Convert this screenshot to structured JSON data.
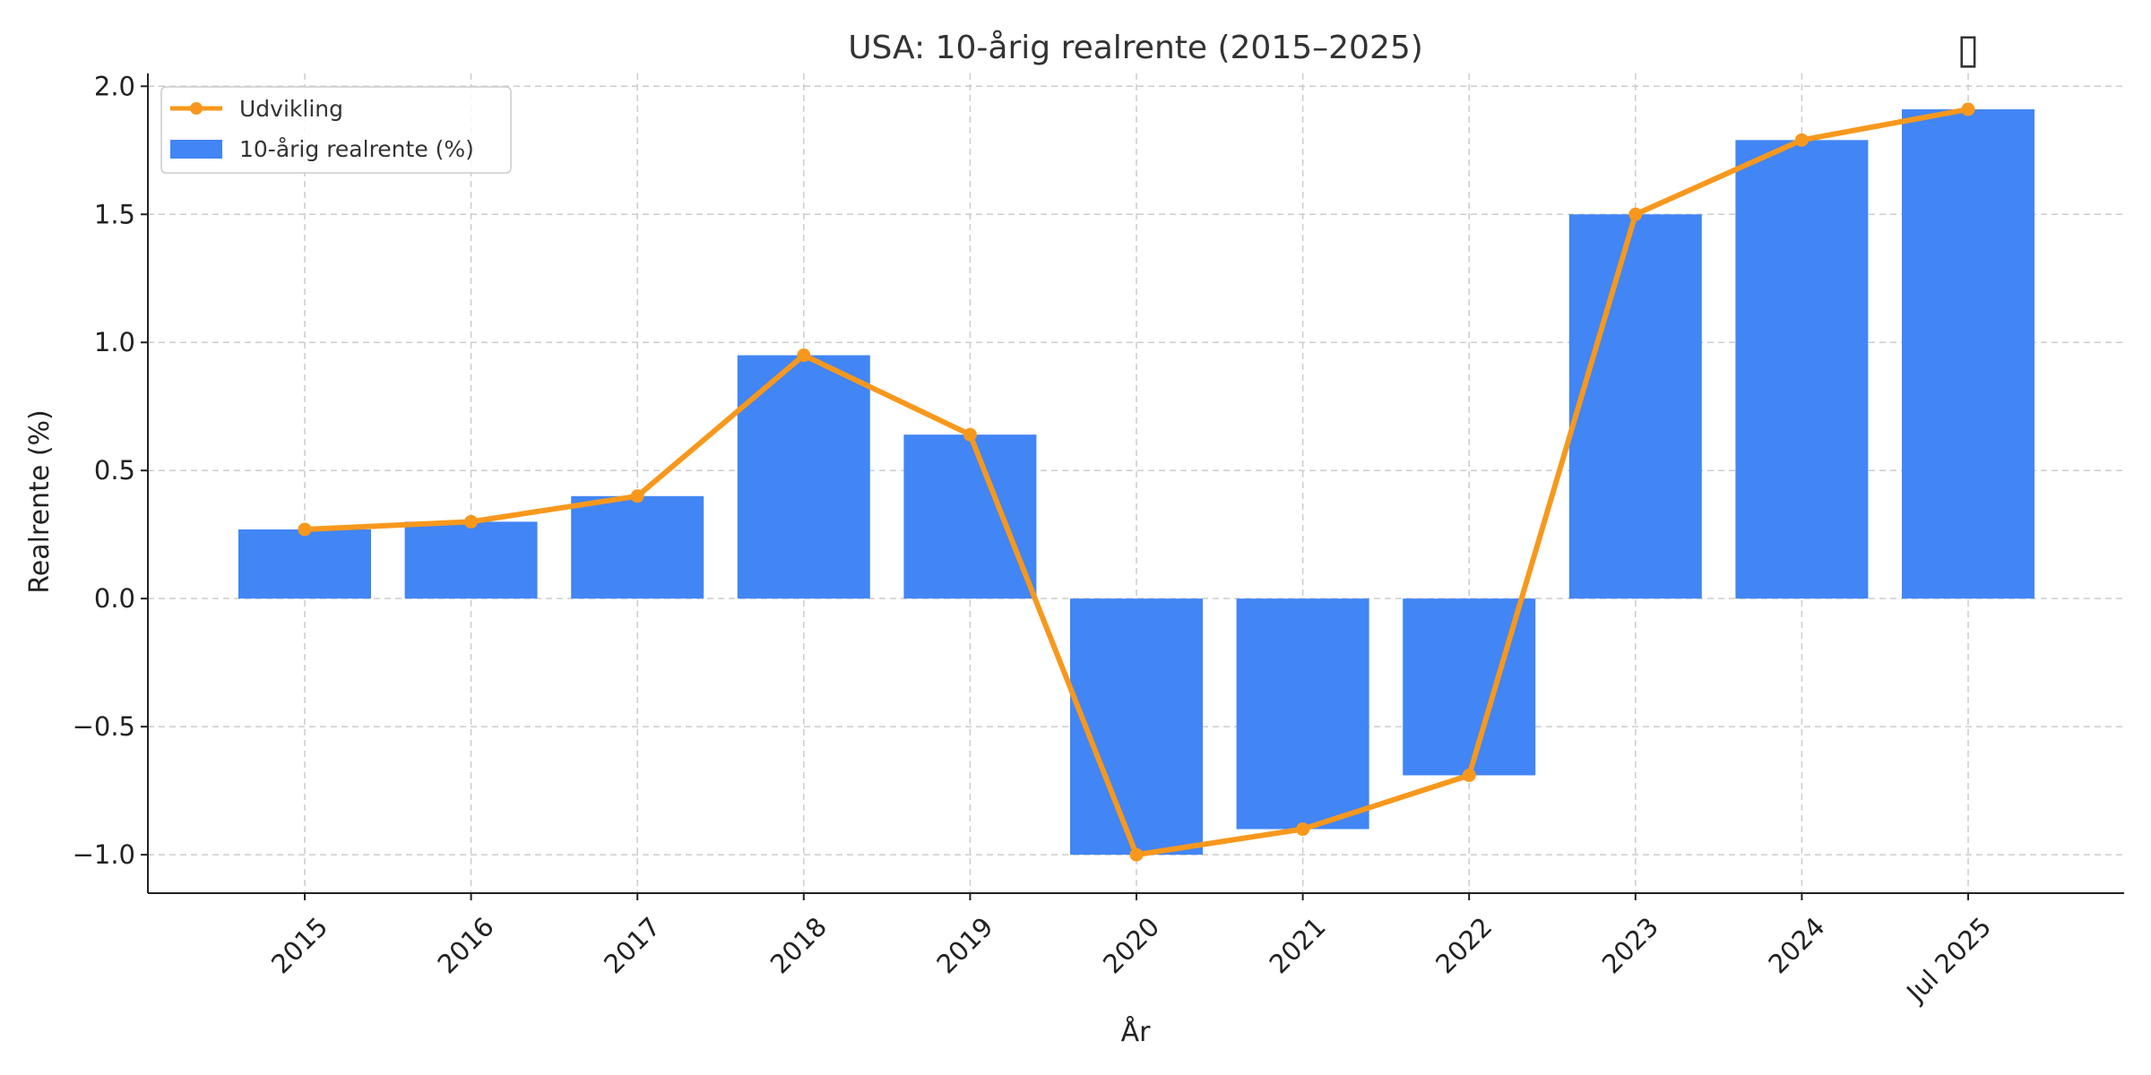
{
  "chart_data": {
    "type": "bar",
    "title": "USA: 10-årig realrente (2015–2025)",
    "xlabel": "År",
    "ylabel": "Realrente (%)",
    "categories": [
      "2015",
      "2016",
      "2017",
      "2018",
      "2019",
      "2020",
      "2021",
      "2022",
      "2023",
      "2024",
      "Jul 2025"
    ],
    "series": [
      {
        "name": "10-årig realrente (%)",
        "type": "bar",
        "values": [
          0.27,
          0.3,
          0.4,
          0.95,
          0.64,
          -1.0,
          -0.9,
          -0.69,
          1.5,
          1.79,
          1.91
        ]
      },
      {
        "name": "Udvikling",
        "type": "line",
        "values": [
          0.27,
          0.3,
          0.4,
          0.95,
          0.64,
          -1.0,
          -0.9,
          -0.69,
          1.5,
          1.79,
          1.91
        ]
      }
    ],
    "ylim": [
      -1.15,
      2.05
    ],
    "yticks": [
      -1.0,
      -0.5,
      0.0,
      0.5,
      1.0,
      1.5,
      2.0
    ],
    "ytick_labels": [
      "−1.0",
      "−0.5",
      "0.0",
      "0.5",
      "1.0",
      "1.5",
      "2.0"
    ],
    "grid": true,
    "legend": "top-left",
    "colors": {
      "bar": "#4285F4",
      "line": "#F7981D",
      "grid": "#CCCCCC",
      "axis": "#222222"
    },
    "annotation": {
      "glyph": "▯",
      "category": "Jul 2025",
      "icon": "missing-glyph-icon"
    }
  }
}
